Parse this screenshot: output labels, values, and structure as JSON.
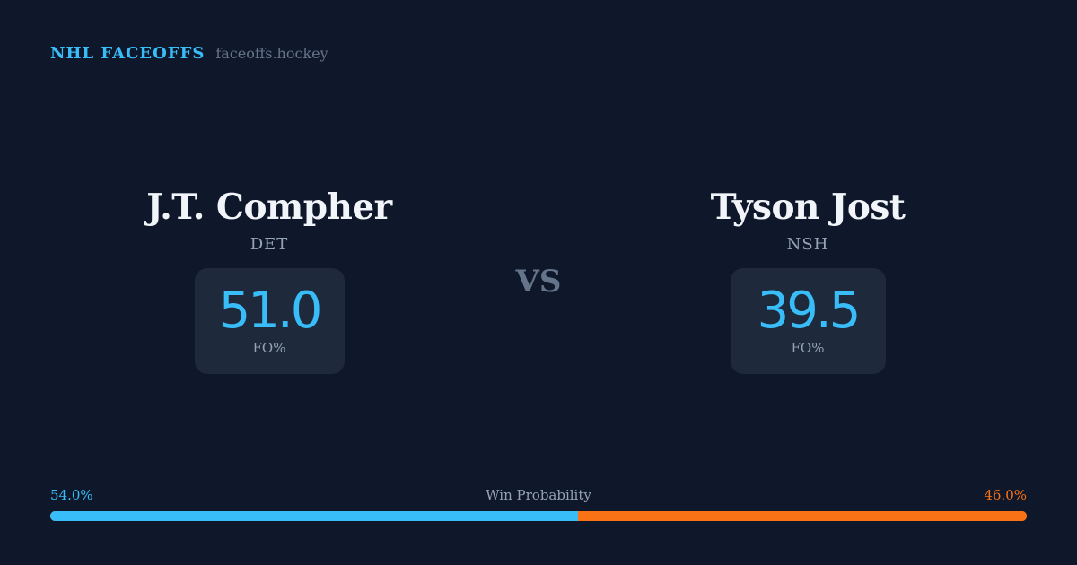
{
  "header": {
    "title": "NHL FACEOFFS",
    "site": "faceoffs.hockey"
  },
  "players": [
    {
      "name": "J.T. Compher",
      "team": "DET",
      "value": "51.0",
      "label": "FO%"
    },
    {
      "name": "Tyson Jost",
      "team": "NSH",
      "value": "39.5",
      "label": "FO%"
    }
  ],
  "vs": "VS",
  "probability": {
    "label": "Win Probability",
    "left": "54.0%",
    "right": "46.0%",
    "left_fraction": 0.54,
    "colors": {
      "left": "#38bdf8",
      "right": "#f97316"
    }
  }
}
